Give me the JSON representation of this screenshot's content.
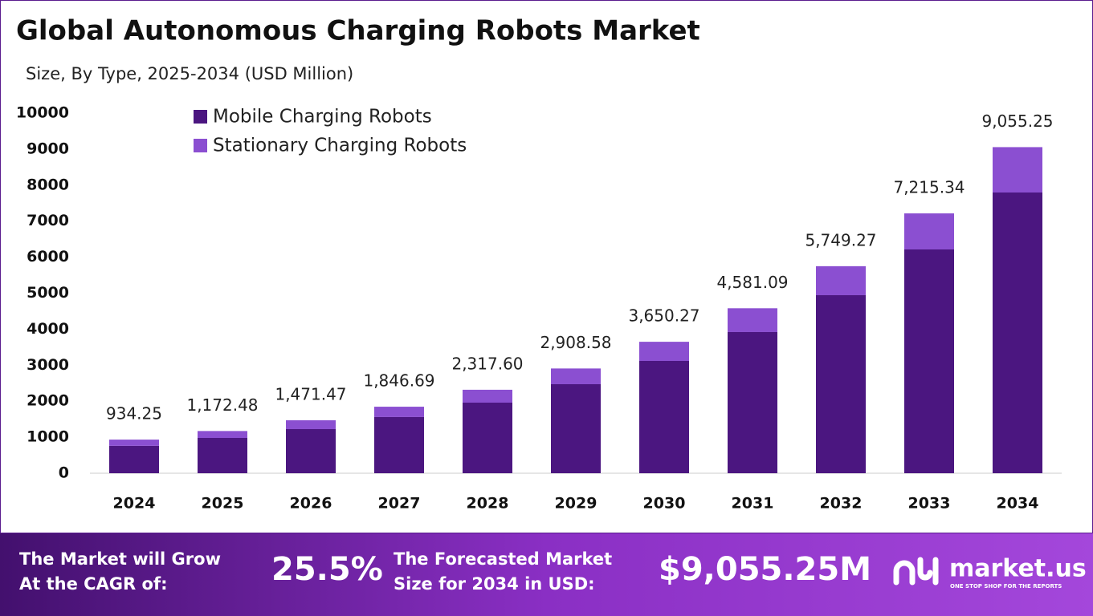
{
  "chart_data": {
    "type": "stacked_bar",
    "title": "Global Autonomous Charging Robots Market",
    "subtitle": "Size, By Type, 2025-2034 (USD Million)",
    "categories": [
      "2024",
      "2025",
      "2026",
      "2027",
      "2028",
      "2029",
      "2030",
      "2031",
      "2032",
      "2033",
      "2034"
    ],
    "series": [
      {
        "name": "Mobile Charging Robots",
        "color": "#4b1680",
        "values": [
          760,
          980,
          1225,
          1560,
          1960,
          2472,
          3118,
          3920,
          4944,
          6214,
          7795
        ]
      },
      {
        "name": "Stationary Charging Robots",
        "color": "#8b4fd1",
        "values": [
          174,
          192,
          246,
          287,
          358,
          437,
          532,
          661,
          805,
          1001,
          1260
        ]
      }
    ],
    "totals": [
      934.25,
      1172.48,
      1471.47,
      1846.69,
      2317.6,
      2908.58,
      3650.27,
      4581.09,
      5749.27,
      7215.34,
      9055.25
    ],
    "total_labels": [
      "934.25",
      "1,172.48",
      "1,471.47",
      "1,846.69",
      "2,317.60",
      "2,908.58",
      "3,650.27",
      "4,581.09",
      "5,749.27",
      "7,215.34",
      "9,055.25"
    ],
    "ylim": [
      0,
      10000
    ],
    "yticks": [
      0,
      1000,
      2000,
      3000,
      4000,
      5000,
      6000,
      7000,
      8000,
      9000,
      10000
    ],
    "grid": false,
    "legend": "top-left"
  },
  "banner": {
    "cagr_text": [
      "The Market will Grow",
      "At the CAGR of:"
    ],
    "cagr": "25.5%",
    "forecast_text": [
      "The Forecasted Market",
      "Size for 2034 in USD:"
    ],
    "forecast": "$9,055.25M",
    "brand": "market.us",
    "tagline": "ONE STOP SHOP FOR THE REPORTS"
  }
}
